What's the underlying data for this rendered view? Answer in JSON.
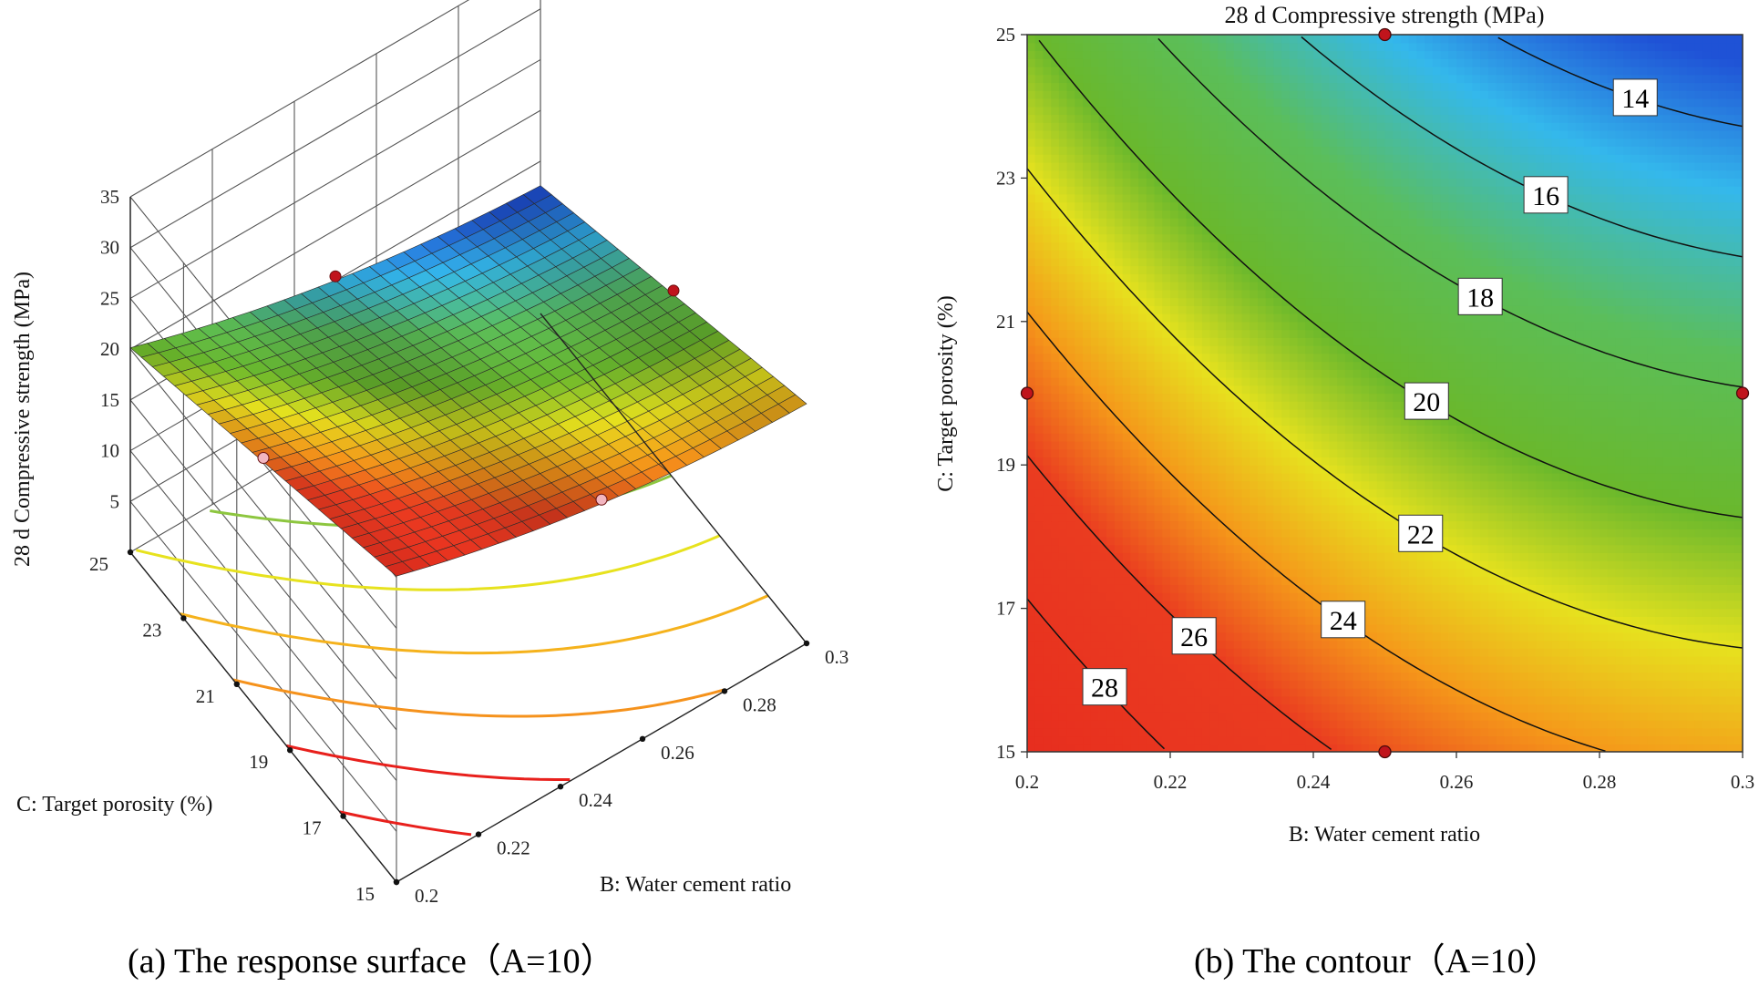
{
  "chart_data": [
    {
      "type": "surface",
      "caption": "(a) The response surface（A=10）",
      "zlabel": "28 d Compressive strength (MPa)",
      "xlabel": "B: Water cement ratio",
      "ylabel": "C: Target porosity (%)",
      "z_ticks": [
        "5",
        "10",
        "15",
        "20",
        "25",
        "30",
        "35"
      ],
      "b_ticks": [
        "0.2",
        "0.22",
        "0.24",
        "0.26",
        "0.28",
        "0.3"
      ],
      "c_ticks": [
        "15",
        "17",
        "19",
        "21",
        "23",
        "25"
      ],
      "b_range": [
        0.2,
        0.3
      ],
      "c_range": [
        15,
        25
      ],
      "z_range": [
        0,
        35
      ],
      "fixed_factor": "A=10",
      "corner_values": {
        "b0.2_c15": 30,
        "b0.3_c15": 24,
        "b0.2_c25": 20,
        "b0.3_c25": 13
      }
    },
    {
      "type": "contour",
      "caption": "(b) The contour（A=10）",
      "title": "28 d Compressive strength (MPa)",
      "xlabel": "B: Water cement ratio",
      "ylabel": "C: Target porosity (%)",
      "x_ticks": [
        "0.2",
        "0.22",
        "0.24",
        "0.26",
        "0.28",
        "0.3"
      ],
      "y_ticks": [
        "15",
        "17",
        "19",
        "21",
        "23",
        "25"
      ],
      "xlim": [
        0.2,
        0.3
      ],
      "ylim": [
        15,
        25
      ],
      "levels": [
        14,
        16,
        18,
        20,
        22,
        24,
        26,
        28
      ],
      "level_labels": [
        "14",
        "16",
        "18",
        "20",
        "22",
        "24",
        "26",
        "28"
      ],
      "design_points": [
        [
          0.25,
          25
        ],
        [
          0.2,
          20
        ],
        [
          0.3,
          20
        ],
        [
          0.25,
          15
        ]
      ]
    }
  ]
}
